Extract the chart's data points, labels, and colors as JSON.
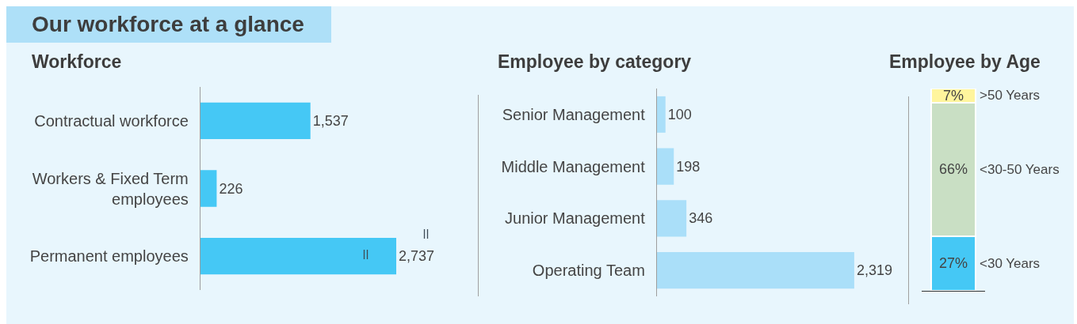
{
  "chart_data": [
    {
      "type": "other",
      "title": "Our workforce at a glance"
    },
    {
      "type": "bar",
      "title": "Workforce",
      "orientation": "horizontal",
      "categories": [
        "Contractual workforce",
        "Workers & Fixed Term employees",
        "Permanent employees"
      ],
      "values": [
        1537,
        226,
        2737
      ],
      "color": "#45c8f5",
      "value_labels": [
        "1,537",
        "226",
        "2,737"
      ],
      "tick_labels": "y"
    },
    {
      "type": "bar",
      "title": "Employee by category",
      "orientation": "horizontal",
      "categories": [
        "Senior Management",
        "Middle Management",
        "Junior Management",
        "Operating Team"
      ],
      "values": [
        100,
        198,
        346,
        2319
      ],
      "color": "#aadff9",
      "value_labels": [
        "100",
        "198",
        "346",
        "2,319"
      ],
      "tick_labels": "y"
    },
    {
      "type": "bar",
      "title": "Employee by Age",
      "stacked": true,
      "categories": [
        null
      ],
      "series": [
        {
          "name": "<30 Years",
          "color": "#45c8f5",
          "values": [
            27
          ],
          "value_labels": [
            "27%"
          ]
        },
        {
          "name": "<30-50 Years",
          "color": "#c9dfc4",
          "values": [
            66
          ],
          "value_labels": [
            "66%"
          ]
        },
        {
          "name": ">50 Years",
          "color": "#fff59d",
          "values": [
            7
          ],
          "value_labels": [
            "7%"
          ]
        }
      ],
      "ylim": [
        0,
        100
      ],
      "tick_labels": false
    }
  ]
}
